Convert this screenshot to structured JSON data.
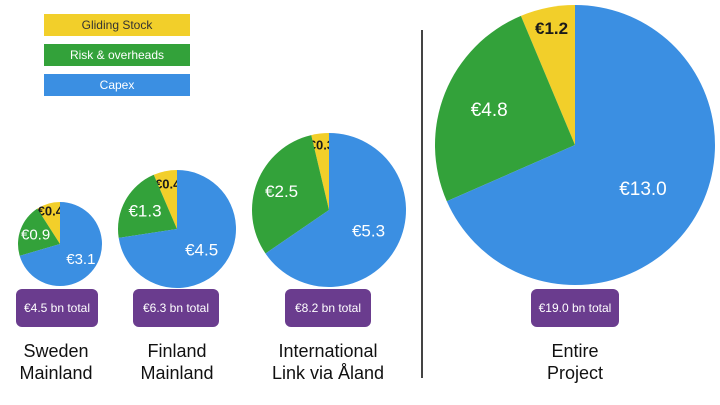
{
  "colors": {
    "gliding": "#f2cf2a",
    "risk": "#33a23a",
    "capex": "#3b8fe2",
    "badge": "#6a3c8e"
  },
  "legend": [
    {
      "label": "Gliding Stock",
      "color": "#f2cf2a"
    },
    {
      "label": "Risk & overheads",
      "color": "#33a23a"
    },
    {
      "label": "Capex",
      "color": "#3b8fe2"
    }
  ],
  "chart_data": {
    "type": "pie",
    "series_order": [
      "Gliding Stock",
      "Risk & overheads",
      "Capex"
    ],
    "pies": [
      {
        "label": "Sweden\nMainland",
        "total": "€4.5 bn total",
        "values": [
          0.4,
          0.9,
          3.1
        ],
        "labels": [
          "€0.4",
          "€0.9",
          "€3.1"
        ]
      },
      {
        "label": "Finland\nMainland",
        "total": "€6.3 bn total",
        "values": [
          0.4,
          1.3,
          4.5
        ],
        "labels": [
          "€0.4",
          "€1.3",
          "€4.5"
        ]
      },
      {
        "label": "International\nLink via Åland",
        "total": "€8.2 bn total",
        "values": [
          0.3,
          2.5,
          5.3
        ],
        "labels": [
          "€0.3",
          "€2.5",
          "€5.3"
        ]
      },
      {
        "label": "Entire\nProject",
        "total": "€19.0 bn total",
        "values": [
          1.2,
          4.8,
          13.0
        ],
        "labels": [
          "€1.2",
          "€4.8",
          "€13.0"
        ]
      }
    ]
  }
}
